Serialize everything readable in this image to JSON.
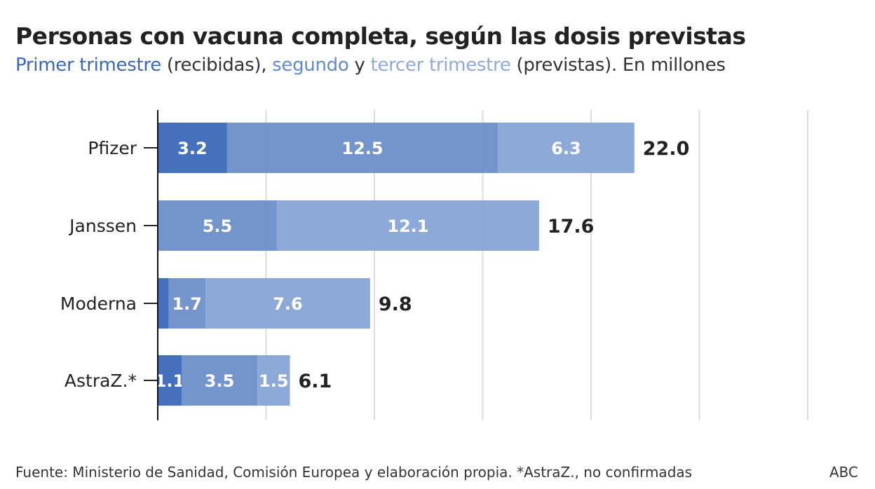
{
  "title": "Personas con vacuna completa, según las dosis previstas",
  "subtitle": {
    "part1": "Primer trimestre",
    "part2": " (recibidas), ",
    "part3": "segundo",
    "part4": " y ",
    "part5": "tercer trimestre",
    "part6": " (previstas). En millones"
  },
  "footer": "Fuente: Ministerio de Sanidad, Comisión Europea y elaboración propia. *AstraZ., no confirmadas",
  "brand": "ABC",
  "chart_data": {
    "type": "bar",
    "orientation": "horizontal",
    "stacked": true,
    "categories": [
      "Pfizer",
      "Janssen",
      "Moderna",
      "AstraZ.*"
    ],
    "series": [
      {
        "name": "Primer trimestre",
        "values": [
          3.2,
          0,
          0.5,
          1.1
        ],
        "labels": [
          "3.2",
          "",
          "",
          "1.1"
        ],
        "color": "#3a68b8"
      },
      {
        "name": "segundo",
        "values": [
          12.5,
          5.5,
          1.7,
          3.5
        ],
        "labels": [
          "12.5",
          "5.5",
          "1.7",
          "3.5"
        ],
        "color": "#6b8fc9"
      },
      {
        "name": "tercer trimestre",
        "values": [
          6.3,
          12.1,
          7.6,
          1.5
        ],
        "labels": [
          "6.3",
          "12.1",
          "7.6",
          "1.5"
        ],
        "color": "#87a4d6"
      }
    ],
    "totals": [
      "22.0",
      "17.6",
      "9.8",
      "6.1"
    ],
    "xlim": [
      0,
      30
    ],
    "grid_step": 5,
    "grid": true,
    "legend": "subtitle"
  }
}
